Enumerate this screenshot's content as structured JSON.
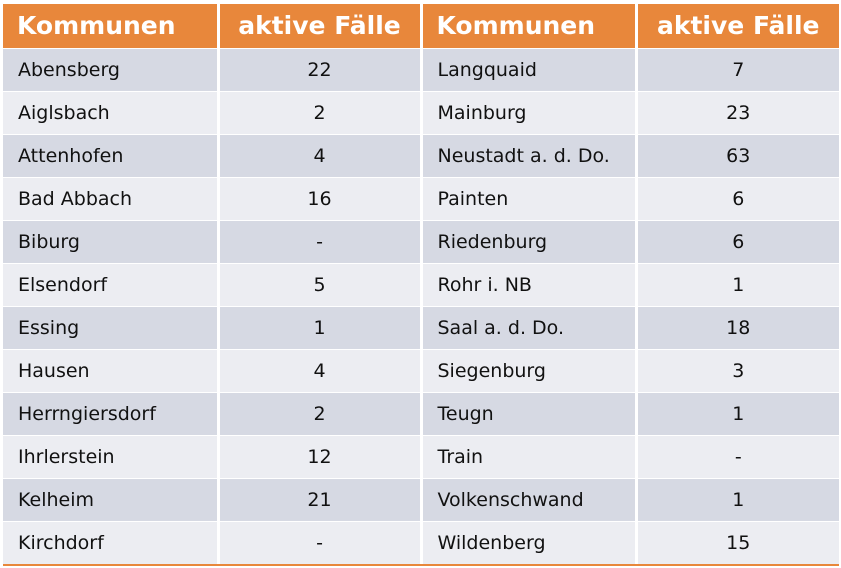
{
  "header": {
    "col1": "Kommunen",
    "col2": "aktive Fälle",
    "col3": "Kommunen",
    "col4": "aktive Fälle"
  },
  "rows": [
    {
      "left_name": "Abensberg",
      "left_value": "22",
      "right_name": "Langquaid",
      "right_value": "7"
    },
    {
      "left_name": "Aiglsbach",
      "left_value": "2",
      "right_name": "Mainburg",
      "right_value": "23"
    },
    {
      "left_name": "Attenhofen",
      "left_value": "4",
      "right_name": "Neustadt a. d. Do.",
      "right_value": "63"
    },
    {
      "left_name": "Bad Abbach",
      "left_value": "16",
      "right_name": "Painten",
      "right_value": "6"
    },
    {
      "left_name": "Biburg",
      "left_value": "-",
      "right_name": "Riedenburg",
      "right_value": "6"
    },
    {
      "left_name": "Elsendorf",
      "left_value": "5",
      "right_name": "Rohr i. NB",
      "right_value": "1"
    },
    {
      "left_name": "Essing",
      "left_value": "1",
      "right_name": "Saal a. d. Do.",
      "right_value": "18"
    },
    {
      "left_name": "Hausen",
      "left_value": "4",
      "right_name": "Siegenburg",
      "right_value": "3"
    },
    {
      "left_name": "Herrngiersdorf",
      "left_value": "2",
      "right_name": "Teugn",
      "right_value": "1"
    },
    {
      "left_name": "Ihrlerstein",
      "left_value": "12",
      "right_name": "Train",
      "right_value": "-"
    },
    {
      "left_name": "Kelheim",
      "left_value": "21",
      "right_name": "Volkenschwand",
      "right_value": "1"
    },
    {
      "left_name": "Kirchdorf",
      "left_value": "-",
      "right_name": "Wildenberg",
      "right_value": "15"
    }
  ],
  "colors": {
    "header_bg": "#E8873B",
    "row_dark": "#D6D9E3",
    "row_light": "#ECEDF2"
  }
}
